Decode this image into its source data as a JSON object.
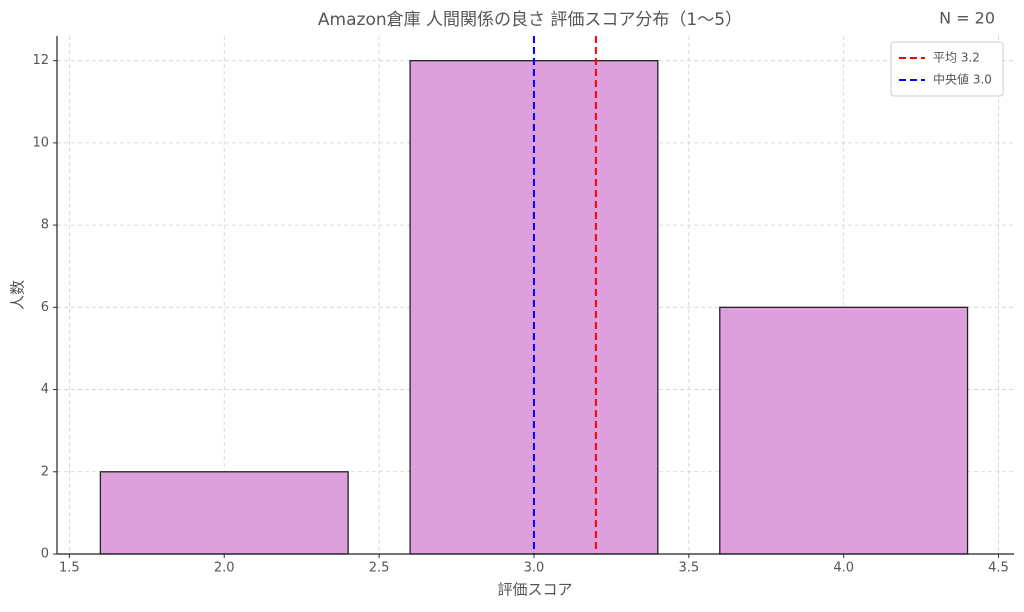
{
  "chart_data": {
    "type": "bar",
    "title": "Amazon倉庫 人間関係の良さ 評価スコア分布（1〜5）",
    "annotation": "N = 20",
    "x_label": "評価スコア",
    "y_label": "人数",
    "x": [
      2,
      3,
      4
    ],
    "values": [
      2,
      12,
      6
    ],
    "color": "#dda0dd",
    "lines": [
      {
        "name": "平均 3.2",
        "value": 3.2,
        "color": "#ff0000"
      },
      {
        "name": "中央値 3.0",
        "value": 3.0,
        "color": "#0000ff"
      }
    ],
    "xlim": [
      1.46,
      4.55
    ],
    "xticks": [
      1.5,
      {
        "value": 2,
        "label": "2.0"
      },
      2.5,
      {
        "value": 3,
        "label": "3.0"
      },
      3.5,
      {
        "value": 4,
        "label": "4.0"
      },
      4.5
    ],
    "ylim": [
      0,
      12.6
    ],
    "yticks": [
      0,
      2,
      4,
      6,
      8,
      10,
      12
    ],
    "grid": true,
    "legend": "upper right"
  }
}
